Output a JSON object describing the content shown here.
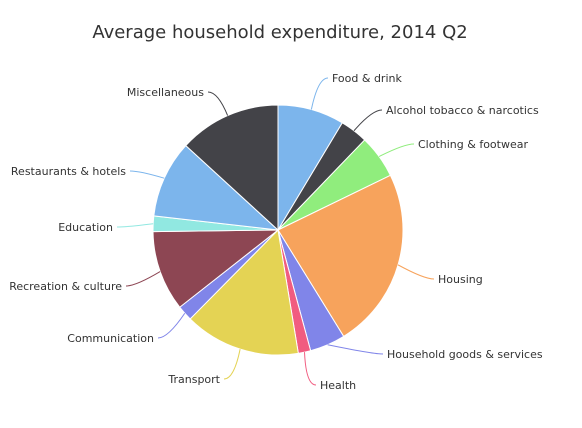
{
  "chart_data": {
    "type": "pie",
    "title": "Average household expenditure, 2014 Q2",
    "slices": [
      {
        "label": "Food & drink",
        "value": 8.6,
        "color": "#7cb5ec"
      },
      {
        "label": "Alcohol tobacco & narcotics",
        "value": 3.6,
        "color": "#434348"
      },
      {
        "label": "Clothing & footwear",
        "value": 5.6,
        "color": "#90ed7d"
      },
      {
        "label": "Housing",
        "value": 23.4,
        "color": "#f7a35c"
      },
      {
        "label": "Household goods & services",
        "value": 4.6,
        "color": "#8085e9"
      },
      {
        "label": "Health",
        "value": 1.6,
        "color": "#f15c80"
      },
      {
        "label": "Transport",
        "value": 15.0,
        "color": "#e4d354"
      },
      {
        "label": "Communication",
        "value": 2.0,
        "color": "#8085e9"
      },
      {
        "label": "Recreation & culture",
        "value": 10.4,
        "color": "#8d4653"
      },
      {
        "label": "Education",
        "value": 2.0,
        "color": "#91e8e1"
      },
      {
        "label": "Restaurants & hotels",
        "value": 10.0,
        "color": "#7cb5ec"
      },
      {
        "label": "Miscellaneous",
        "value": 13.2,
        "color": "#434348"
      }
    ],
    "legend": "none",
    "data_labels": "outside with connector lines"
  }
}
